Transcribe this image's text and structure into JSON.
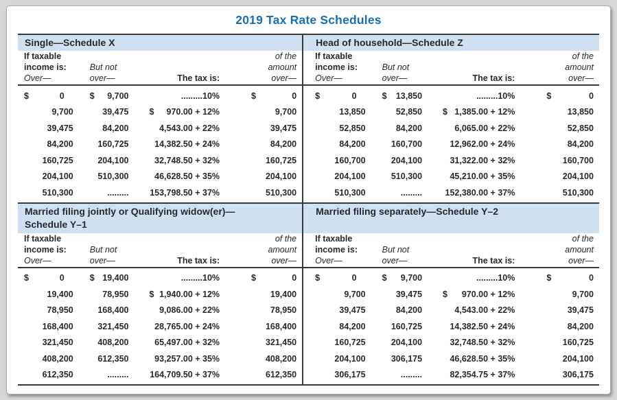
{
  "page_title": "2019 Tax Rate Schedules",
  "colors": {
    "accent": "#1470b8",
    "band": "#cfe0f1",
    "ink": "#27292e",
    "rule": "#36383e",
    "page": "#d6d7d8",
    "cardBorder": "#a7a9ac"
  },
  "column_headers": {
    "if_taxable_line1": "If taxable",
    "if_taxable_line2": "income is:",
    "over_label": "Over—",
    "but_not_line1": "But not",
    "but_not_line2": "over—",
    "tax_label": "The tax is:",
    "amount_line1": "of the",
    "amount_line2": "amount",
    "amount_line3": "over—"
  },
  "quadrants": [
    {
      "title_lines": [
        "Single—Schedule X"
      ],
      "rows": [
        {
          "over_sym": "$",
          "over": "0",
          "but_sym": "$",
          "but": "9,700",
          "tax_sym": "",
          "tax": ".........10%",
          "amt_sym": "$",
          "amt": "0"
        },
        {
          "over_sym": "",
          "over": "9,700",
          "but_sym": "",
          "but": "39,475",
          "tax_sym": "$",
          "tax": "970.00 + 12%",
          "amt_sym": "",
          "amt": "9,700"
        },
        {
          "over_sym": "",
          "over": "39,475",
          "but_sym": "",
          "but": "84,200",
          "tax_sym": "",
          "tax": "4,543.00 + 22%",
          "amt_sym": "",
          "amt": "39,475"
        },
        {
          "over_sym": "",
          "over": "84,200",
          "but_sym": "",
          "but": "160,725",
          "tax_sym": "",
          "tax": "14,382.50 + 24%",
          "amt_sym": "",
          "amt": "84,200"
        },
        {
          "over_sym": "",
          "over": "160,725",
          "but_sym": "",
          "but": "204,100",
          "tax_sym": "",
          "tax": "32,748.50 + 32%",
          "amt_sym": "",
          "amt": "160,725"
        },
        {
          "over_sym": "",
          "over": "204,100",
          "but_sym": "",
          "but": "510,300",
          "tax_sym": "",
          "tax": "46,628.50 + 35%",
          "amt_sym": "",
          "amt": "204,100"
        },
        {
          "over_sym": "",
          "over": "510,300",
          "but_sym": "",
          "but": ".........",
          "tax_sym": "",
          "tax": "153,798.50 + 37%",
          "amt_sym": "",
          "amt": "510,300"
        }
      ]
    },
    {
      "title_lines": [
        "Head of household—Schedule Z"
      ],
      "rows": [
        {
          "over_sym": "$",
          "over": "0",
          "but_sym": "$",
          "but": "13,850",
          "tax_sym": "",
          "tax": ".........10%",
          "amt_sym": "$",
          "amt": "0"
        },
        {
          "over_sym": "",
          "over": "13,850",
          "but_sym": "",
          "but": "52,850",
          "tax_sym": "$",
          "tax": "1,385.00 + 12%",
          "amt_sym": "",
          "amt": "13,850"
        },
        {
          "over_sym": "",
          "over": "52,850",
          "but_sym": "",
          "but": "84,200",
          "tax_sym": "",
          "tax": "6,065.00 + 22%",
          "amt_sym": "",
          "amt": "52,850"
        },
        {
          "over_sym": "",
          "over": "84,200",
          "but_sym": "",
          "but": "160,700",
          "tax_sym": "",
          "tax": "12,962.00 + 24%",
          "amt_sym": "",
          "amt": "84,200"
        },
        {
          "over_sym": "",
          "over": "160,700",
          "but_sym": "",
          "but": "204,100",
          "tax_sym": "",
          "tax": "31,322.00 + 32%",
          "amt_sym": "",
          "amt": "160,700"
        },
        {
          "over_sym": "",
          "over": "204,100",
          "but_sym": "",
          "but": "510,300",
          "tax_sym": "",
          "tax": "45,210.00 + 35%",
          "amt_sym": "",
          "amt": "204,100"
        },
        {
          "over_sym": "",
          "over": "510,300",
          "but_sym": "",
          "but": ".........",
          "tax_sym": "",
          "tax": "152,380.00 + 37%",
          "amt_sym": "",
          "amt": "510,300"
        }
      ]
    },
    {
      "title_lines": [
        "Married filing jointly or Qualifying widow(er)—",
        "Schedule Y–1"
      ],
      "rows": [
        {
          "over_sym": "$",
          "over": "0",
          "but_sym": "$",
          "but": "19,400",
          "tax_sym": "",
          "tax": ".........10%",
          "amt_sym": "$",
          "amt": "0"
        },
        {
          "over_sym": "",
          "over": "19,400",
          "but_sym": "",
          "but": "78,950",
          "tax_sym": "$",
          "tax": "1,940.00 + 12%",
          "amt_sym": "",
          "amt": "19,400"
        },
        {
          "over_sym": "",
          "over": "78,950",
          "but_sym": "",
          "but": "168,400",
          "tax_sym": "",
          "tax": "9,086.00 + 22%",
          "amt_sym": "",
          "amt": "78,950"
        },
        {
          "over_sym": "",
          "over": "168,400",
          "but_sym": "",
          "but": "321,450",
          "tax_sym": "",
          "tax": "28,765.00 + 24%",
          "amt_sym": "",
          "amt": "168,400"
        },
        {
          "over_sym": "",
          "over": "321,450",
          "but_sym": "",
          "but": "408,200",
          "tax_sym": "",
          "tax": "65,497.00 + 32%",
          "amt_sym": "",
          "amt": "321,450"
        },
        {
          "over_sym": "",
          "over": "408,200",
          "but_sym": "",
          "but": "612,350",
          "tax_sym": "",
          "tax": "93,257.00 + 35%",
          "amt_sym": "",
          "amt": "408,200"
        },
        {
          "over_sym": "",
          "over": "612,350",
          "but_sym": "",
          "but": ".........",
          "tax_sym": "",
          "tax": "164,709.50 + 37%",
          "amt_sym": "",
          "amt": "612,350"
        }
      ]
    },
    {
      "title_lines": [
        "Married filing separately—Schedule Y–2"
      ],
      "rows": [
        {
          "over_sym": "$",
          "over": "0",
          "but_sym": "$",
          "but": "9,700",
          "tax_sym": "",
          "tax": ".........10%",
          "amt_sym": "$",
          "amt": "0"
        },
        {
          "over_sym": "",
          "over": "9,700",
          "but_sym": "",
          "but": "39,475",
          "tax_sym": "$",
          "tax": "970.00 + 12%",
          "amt_sym": "",
          "amt": "9,700"
        },
        {
          "over_sym": "",
          "over": "39,475",
          "but_sym": "",
          "but": "84,200",
          "tax_sym": "",
          "tax": "4,543.00 + 22%",
          "amt_sym": "",
          "amt": "39,475"
        },
        {
          "over_sym": "",
          "over": "84,200",
          "but_sym": "",
          "but": "160,725",
          "tax_sym": "",
          "tax": "14,382.50 + 24%",
          "amt_sym": "",
          "amt": "84,200"
        },
        {
          "over_sym": "",
          "over": "160,725",
          "but_sym": "",
          "but": "204,100",
          "tax_sym": "",
          "tax": "32,748.50 + 32%",
          "amt_sym": "",
          "amt": "160,725"
        },
        {
          "over_sym": "",
          "over": "204,100",
          "but_sym": "",
          "but": "306,175",
          "tax_sym": "",
          "tax": "46,628.50 + 35%",
          "amt_sym": "",
          "amt": "204,100"
        },
        {
          "over_sym": "",
          "over": "306,175",
          "but_sym": "",
          "but": ".........",
          "tax_sym": "",
          "tax": "82,354.75 + 37%",
          "amt_sym": "",
          "amt": "306,175"
        }
      ]
    }
  ]
}
